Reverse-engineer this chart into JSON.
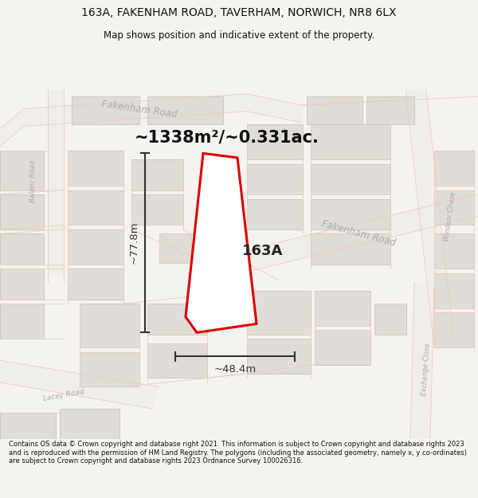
{
  "title_line1": "163A, FAKENHAM ROAD, TAVERHAM, NORWICH, NR8 6LX",
  "title_line2": "Map shows position and indicative extent of the property.",
  "footer_text": "Contains OS data © Crown copyright and database right 2021. This information is subject to Crown copyright and database rights 2023 and is reproduced with the permission of HM Land Registry. The polygons (including the associated geometry, namely x, y co-ordinates) are subject to Crown copyright and database rights 2023 Ordnance Survey 100026316.",
  "area_label": "~1338m²/~0.331ac.",
  "plot_label": "163A",
  "width_label": "~48.4m",
  "height_label": "~77.8m",
  "bg_color": "#f5f3f0",
  "map_bg": "#f8f6f2",
  "road_line_color": "#f0c8c0",
  "building_fill": "#e0ddd8",
  "building_edge": "#c8c4bc",
  "property_fill": "#ffffff",
  "property_edge": "#dd0000",
  "road_label_color": "#aaaaaa",
  "dim_line_color": "#333333",
  "area_label_color": "#111111",
  "plot_label_color": "#222222"
}
